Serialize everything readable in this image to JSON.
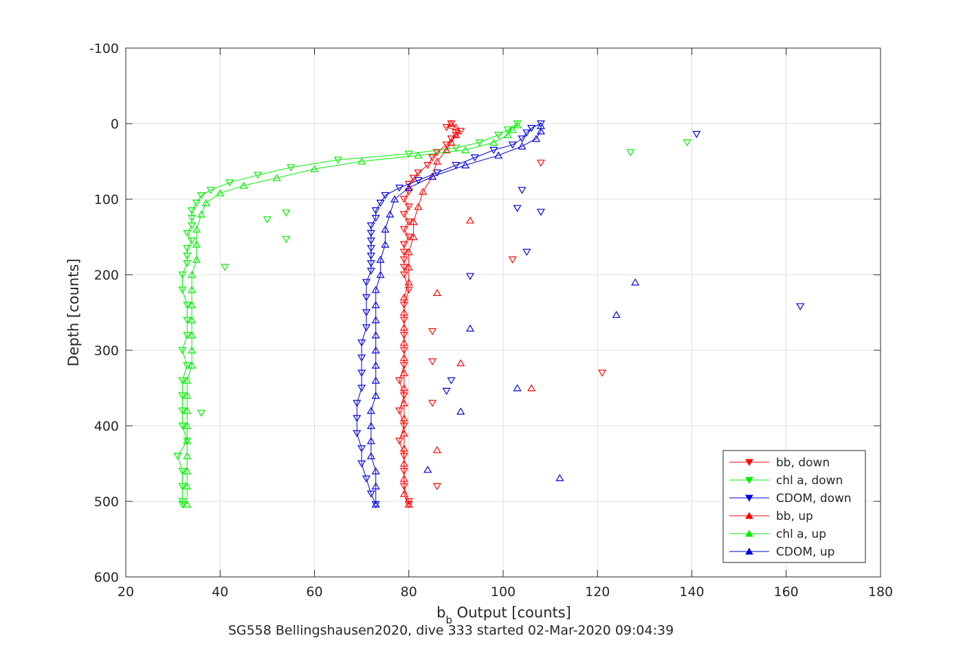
{
  "chart_data": {
    "type": "line",
    "title": "",
    "xlabel_main": "b",
    "xlabel_sub": "b",
    "xlabel_rest": " Output [counts]",
    "ylabel": "Depth [counts]",
    "caption": "SG558 Bellingshausen2020, dive 333 started 02-Mar-2020 09:04:39",
    "xlim": [
      20,
      180
    ],
    "ylim": [
      -100,
      600
    ],
    "y_reversed": true,
    "grid": true,
    "legend_position": "lower-right",
    "x_ticks": [
      "20",
      "40",
      "60",
      "80",
      "100",
      "120",
      "140",
      "160",
      "180"
    ],
    "y_ticks": [
      "-100",
      "0",
      "100",
      "200",
      "300",
      "400",
      "500",
      "600"
    ],
    "x_tick_values": [
      20,
      40,
      60,
      80,
      100,
      120,
      140,
      160,
      180
    ],
    "y_tick_values": [
      -100,
      0,
      100,
      200,
      300,
      400,
      500,
      600
    ],
    "series": [
      {
        "name": "bb, down",
        "color": "#ff0000",
        "marker": "triangle-down",
        "points": [
          [
            89,
            0
          ],
          [
            88,
            5
          ],
          [
            91,
            10
          ],
          [
            90,
            15
          ],
          [
            89,
            20
          ],
          [
            88,
            28
          ],
          [
            86,
            38
          ],
          [
            85,
            45
          ],
          [
            84,
            55
          ],
          [
            82,
            65
          ],
          [
            81,
            72
          ],
          [
            80,
            80
          ],
          [
            80,
            90
          ],
          [
            79,
            100
          ],
          [
            80,
            110
          ],
          [
            79,
            120
          ],
          [
            80,
            130
          ],
          [
            79,
            140
          ],
          [
            80,
            150
          ],
          [
            79,
            160
          ],
          [
            79,
            170
          ],
          [
            79,
            180
          ],
          [
            79,
            190
          ],
          [
            79,
            200
          ],
          [
            80,
            220
          ],
          [
            79,
            240
          ],
          [
            79,
            260
          ],
          [
            79,
            280
          ],
          [
            79,
            300
          ],
          [
            79,
            320
          ],
          [
            78,
            340
          ],
          [
            79,
            360
          ],
          [
            78,
            380
          ],
          [
            79,
            400
          ],
          [
            78,
            420
          ],
          [
            79,
            440
          ],
          [
            79,
            460
          ],
          [
            79,
            480
          ],
          [
            80,
            500
          ],
          [
            80,
            504
          ]
        ]
      },
      {
        "name": "chl a, down",
        "color": "#00ee00",
        "marker": "triangle-down",
        "points": [
          [
            103,
            0
          ],
          [
            101,
            8
          ],
          [
            99,
            15
          ],
          [
            95,
            25
          ],
          [
            90,
            32
          ],
          [
            80,
            40
          ],
          [
            65,
            48
          ],
          [
            55,
            58
          ],
          [
            48,
            68
          ],
          [
            42,
            78
          ],
          [
            38,
            88
          ],
          [
            36,
            95
          ],
          [
            35,
            105
          ],
          [
            34,
            115
          ],
          [
            34,
            125
          ],
          [
            34,
            135
          ],
          [
            33,
            145
          ],
          [
            34,
            155
          ],
          [
            33,
            165
          ],
          [
            33,
            175
          ],
          [
            33,
            185
          ],
          [
            32,
            200
          ],
          [
            32,
            220
          ],
          [
            33,
            240
          ],
          [
            33,
            260
          ],
          [
            33,
            280
          ],
          [
            32,
            300
          ],
          [
            33,
            320
          ],
          [
            32,
            340
          ],
          [
            32,
            360
          ],
          [
            32,
            380
          ],
          [
            32,
            400
          ],
          [
            33,
            420
          ],
          [
            31,
            440
          ],
          [
            32,
            460
          ],
          [
            32,
            480
          ],
          [
            32,
            500
          ],
          [
            32,
            504
          ]
        ]
      },
      {
        "name": "CDOM, down",
        "color": "#0000dd",
        "marker": "triangle-down",
        "points": [
          [
            108,
            0
          ],
          [
            106,
            6
          ],
          [
            105,
            12
          ],
          [
            104,
            20
          ],
          [
            102,
            28
          ],
          [
            98,
            35
          ],
          [
            94,
            45
          ],
          [
            90,
            55
          ],
          [
            86,
            65
          ],
          [
            82,
            75
          ],
          [
            78,
            85
          ],
          [
            75,
            95
          ],
          [
            74,
            105
          ],
          [
            73,
            115
          ],
          [
            73,
            125
          ],
          [
            72,
            135
          ],
          [
            72,
            145
          ],
          [
            72,
            155
          ],
          [
            72,
            165
          ],
          [
            72,
            175
          ],
          [
            72,
            185
          ],
          [
            72,
            195
          ],
          [
            71,
            210
          ],
          [
            71,
            230
          ],
          [
            71,
            250
          ],
          [
            71,
            270
          ],
          [
            70,
            290
          ],
          [
            70,
            310
          ],
          [
            70,
            330
          ],
          [
            70,
            350
          ],
          [
            69,
            370
          ],
          [
            69,
            390
          ],
          [
            69,
            410
          ],
          [
            70,
            430
          ],
          [
            70,
            450
          ],
          [
            71,
            470
          ],
          [
            72,
            490
          ],
          [
            73,
            504
          ]
        ]
      },
      {
        "name": "bb, up",
        "color": "#ff0000",
        "marker": "triangle-up",
        "points": [
          [
            80,
            504
          ],
          [
            79,
            490
          ],
          [
            79,
            470
          ],
          [
            79,
            450
          ],
          [
            79,
            430
          ],
          [
            79,
            410
          ],
          [
            79,
            390
          ],
          [
            79,
            370
          ],
          [
            79,
            350
          ],
          [
            79,
            330
          ],
          [
            79,
            310
          ],
          [
            79,
            290
          ],
          [
            79,
            270
          ],
          [
            79,
            250
          ],
          [
            79,
            230
          ],
          [
            80,
            210
          ],
          [
            80,
            190
          ],
          [
            80,
            170
          ],
          [
            81,
            150
          ],
          [
            81,
            130
          ],
          [
            82,
            110
          ],
          [
            83,
            90
          ],
          [
            85,
            70
          ],
          [
            86,
            50
          ],
          [
            88,
            35
          ],
          [
            89,
            25
          ],
          [
            90,
            15
          ],
          [
            90,
            5
          ],
          [
            89,
            0
          ]
        ]
      },
      {
        "name": "chl a, up",
        "color": "#00ee00",
        "marker": "triangle-up",
        "points": [
          [
            33,
            504
          ],
          [
            33,
            480
          ],
          [
            33,
            460
          ],
          [
            33,
            440
          ],
          [
            33,
            420
          ],
          [
            33,
            400
          ],
          [
            33,
            380
          ],
          [
            33,
            360
          ],
          [
            33,
            340
          ],
          [
            34,
            320
          ],
          [
            34,
            300
          ],
          [
            34,
            280
          ],
          [
            34,
            260
          ],
          [
            34,
            240
          ],
          [
            34,
            220
          ],
          [
            34,
            200
          ],
          [
            35,
            180
          ],
          [
            35,
            160
          ],
          [
            35,
            140
          ],
          [
            36,
            120
          ],
          [
            37,
            105
          ],
          [
            40,
            92
          ],
          [
            45,
            82
          ],
          [
            52,
            72
          ],
          [
            60,
            60
          ],
          [
            70,
            50
          ],
          [
            82,
            42
          ],
          [
            92,
            35
          ],
          [
            98,
            25
          ],
          [
            101,
            15
          ],
          [
            102,
            8
          ],
          [
            103,
            2
          ]
        ]
      },
      {
        "name": "CDOM, up",
        "color": "#0000dd",
        "marker": "triangle-up",
        "points": [
          [
            73,
            504
          ],
          [
            73,
            480
          ],
          [
            73,
            460
          ],
          [
            72,
            440
          ],
          [
            72,
            420
          ],
          [
            72,
            400
          ],
          [
            72,
            380
          ],
          [
            73,
            360
          ],
          [
            73,
            340
          ],
          [
            73,
            320
          ],
          [
            73,
            300
          ],
          [
            73,
            280
          ],
          [
            73,
            260
          ],
          [
            73,
            240
          ],
          [
            73,
            220
          ],
          [
            74,
            200
          ],
          [
            74,
            180
          ],
          [
            75,
            160
          ],
          [
            75,
            140
          ],
          [
            76,
            120
          ],
          [
            77,
            100
          ],
          [
            80,
            85
          ],
          [
            85,
            70
          ],
          [
            92,
            55
          ],
          [
            99,
            42
          ],
          [
            104,
            30
          ],
          [
            107,
            20
          ],
          [
            108,
            10
          ],
          [
            108,
            3
          ]
        ]
      }
    ],
    "outliers": [
      {
        "series": 0,
        "x": 121,
        "y": 330
      },
      {
        "series": 0,
        "x": 108,
        "y": 52
      },
      {
        "series": 0,
        "x": 102,
        "y": 180
      },
      {
        "series": 0,
        "x": 86,
        "y": 480
      },
      {
        "series": 0,
        "x": 85,
        "y": 370
      },
      {
        "series": 0,
        "x": 85,
        "y": 315
      },
      {
        "series": 0,
        "x": 85,
        "y": 275
      },
      {
        "series": 1,
        "x": 139,
        "y": 25
      },
      {
        "series": 1,
        "x": 127,
        "y": 38
      },
      {
        "series": 1,
        "x": 54,
        "y": 153
      },
      {
        "series": 1,
        "x": 54,
        "y": 118
      },
      {
        "series": 1,
        "x": 50,
        "y": 127
      },
      {
        "series": 1,
        "x": 41,
        "y": 190
      },
      {
        "series": 1,
        "x": 36,
        "y": 383
      },
      {
        "series": 2,
        "x": 163,
        "y": 242
      },
      {
        "series": 2,
        "x": 141,
        "y": 14
      },
      {
        "series": 2,
        "x": 108,
        "y": 117
      },
      {
        "series": 2,
        "x": 105,
        "y": 170
      },
      {
        "series": 2,
        "x": 103,
        "y": 112
      },
      {
        "series": 2,
        "x": 93,
        "y": 202
      },
      {
        "series": 2,
        "x": 89,
        "y": 340
      },
      {
        "series": 2,
        "x": 88,
        "y": 354
      },
      {
        "series": 2,
        "x": 104,
        "y": 88
      },
      {
        "series": 3,
        "x": 106,
        "y": 350
      },
      {
        "series": 3,
        "x": 91,
        "y": 317
      },
      {
        "series": 3,
        "x": 86,
        "y": 224
      },
      {
        "series": 3,
        "x": 86,
        "y": 432
      },
      {
        "series": 3,
        "x": 93,
        "y": 128
      },
      {
        "series": 5,
        "x": 128,
        "y": 210
      },
      {
        "series": 5,
        "x": 124,
        "y": 253
      },
      {
        "series": 5,
        "x": 112,
        "y": 469
      },
      {
        "series": 5,
        "x": 103,
        "y": 350
      },
      {
        "series": 5,
        "x": 93,
        "y": 271
      },
      {
        "series": 5,
        "x": 91,
        "y": 381
      },
      {
        "series": 5,
        "x": 84,
        "y": 458
      }
    ]
  }
}
